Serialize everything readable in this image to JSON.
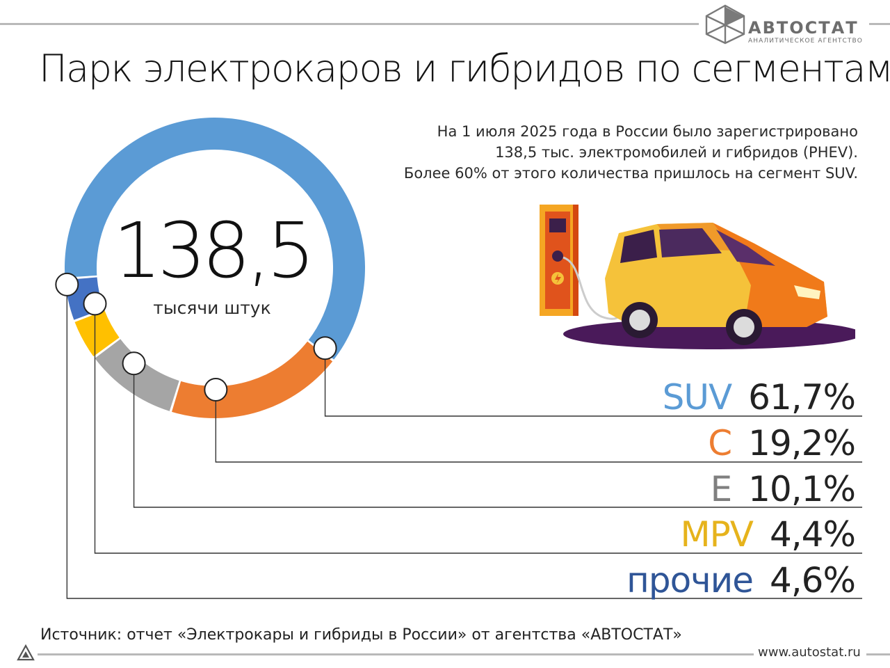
{
  "header": {
    "logo_name": "АВТОСТАТ",
    "logo_subtitle": "АНАЛИТИЧЕСКОЕ АГЕНТСТВО",
    "title": "Парк электрокаров и гибридов по сегментам"
  },
  "description": [
    "На 1 июля 2025 года в России было зарегистрировано",
    "138,5 тыс. электромобилей и гибридов (PHEV).",
    "Более 60% от этого количества пришлось на сегмент SUV."
  ],
  "center": {
    "value": "138,5",
    "unit": "тысячи штук"
  },
  "chart_data": {
    "type": "pie",
    "variant": "donut",
    "title": "Парк электрокаров и гибридов по сегментам",
    "total_label": "138,5",
    "total_unit": "тысячи штук",
    "categories": [
      "SUV",
      "C",
      "E",
      "MPV",
      "прочие"
    ],
    "values": [
      61.7,
      19.2,
      10.1,
      4.4,
      4.6
    ],
    "value_labels": [
      "61,7%",
      "19,2%",
      "10,1%",
      "4,4%",
      "4,6%"
    ],
    "colors": [
      "#5b9bd5",
      "#ed7d31",
      "#a5a5a5",
      "#ffc000",
      "#4472c4"
    ],
    "label_colors": [
      "#5b9bd5",
      "#ed7d31",
      "#7f7f7f",
      "#e6b31c",
      "#2f5597"
    ],
    "legend_position": "bottom-right"
  },
  "footer": {
    "source": "Источник: отчет «Электрокары и гибриды в России» от агентства «АВТОСТАТ»",
    "url": "www.autostat.ru"
  },
  "icons": [
    "autostat-logo-icon",
    "ev-charger-car-illustration",
    "triangle-mark-icon"
  ]
}
